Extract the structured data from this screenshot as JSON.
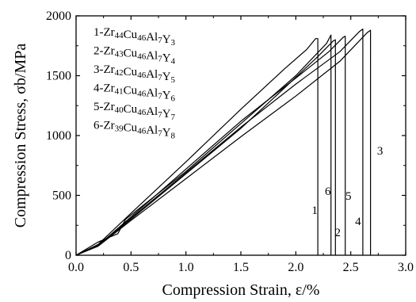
{
  "chart_data": {
    "type": "line",
    "xlabel": "Compression Strain, ε/%",
    "ylabel": "Compression Stress, σb/MPa",
    "xlim": [
      0.0,
      3.0
    ],
    "ylim": [
      0,
      2000
    ],
    "xticks": [
      "0.0",
      "0.5",
      "1.0",
      "1.5",
      "2.0",
      "2.5",
      "3.0"
    ],
    "yticks": [
      "0",
      "500",
      "1000",
      "1500",
      "2000"
    ],
    "xtick_values": [
      0.0,
      0.5,
      1.0,
      1.5,
      2.0,
      2.5,
      3.0
    ],
    "ytick_values": [
      0,
      500,
      1000,
      1500,
      2000
    ],
    "grid": false,
    "legend_position": "top-left",
    "series": [
      {
        "name": "1-Zr44Cu46Al7Y3",
        "curve_label": "1",
        "points": [
          [
            0.0,
            0
          ],
          [
            0.2,
            90
          ],
          [
            0.5,
            350
          ],
          [
            1.0,
            780
          ],
          [
            1.5,
            1220
          ],
          [
            1.9,
            1560
          ],
          [
            2.1,
            1720
          ],
          [
            2.18,
            1810
          ],
          [
            2.2,
            1810
          ],
          [
            2.2,
            0
          ]
        ]
      },
      {
        "name": "2-Zr43Cu46Al7Y4",
        "curve_label": "2",
        "points": [
          [
            0.0,
            0
          ],
          [
            0.2,
            80
          ],
          [
            0.5,
            300
          ],
          [
            1.0,
            680
          ],
          [
            1.5,
            1060
          ],
          [
            1.9,
            1400
          ],
          [
            2.2,
            1660
          ],
          [
            2.34,
            1790
          ],
          [
            2.36,
            1800
          ],
          [
            2.36,
            0
          ]
        ]
      },
      {
        "name": "3-Zr42Cu46Al7Y5",
        "curve_label": "3",
        "points": [
          [
            0.0,
            0
          ],
          [
            0.2,
            75
          ],
          [
            0.5,
            290
          ],
          [
            1.0,
            640
          ],
          [
            1.5,
            990
          ],
          [
            2.0,
            1330
          ],
          [
            2.4,
            1620
          ],
          [
            2.65,
            1860
          ],
          [
            2.68,
            1880
          ],
          [
            2.68,
            0
          ]
        ]
      },
      {
        "name": "4-Zr41Cu46Al7Y6",
        "curve_label": "4",
        "points": [
          [
            0.0,
            0
          ],
          [
            0.2,
            85
          ],
          [
            0.5,
            310
          ],
          [
            1.0,
            690
          ],
          [
            1.5,
            1070
          ],
          [
            2.0,
            1430
          ],
          [
            2.4,
            1700
          ],
          [
            2.58,
            1870
          ],
          [
            2.61,
            1890
          ],
          [
            2.61,
            0
          ]
        ]
      },
      {
        "name": "5-Zr40Cu46Al7Y7",
        "curve_label": "5",
        "points": [
          [
            0.0,
            0
          ],
          [
            0.2,
            80
          ],
          [
            0.5,
            320
          ],
          [
            1.0,
            720
          ],
          [
            1.5,
            1120
          ],
          [
            2.0,
            1480
          ],
          [
            2.3,
            1700
          ],
          [
            2.43,
            1820
          ],
          [
            2.45,
            1830
          ],
          [
            2.45,
            0
          ]
        ]
      },
      {
        "name": "6-Zr39Cu46Al7Y8",
        "curve_label": "6",
        "points": [
          [
            0.0,
            0
          ],
          [
            0.2,
            110
          ],
          [
            0.38,
            180
          ],
          [
            0.45,
            300
          ],
          [
            1.0,
            700
          ],
          [
            1.5,
            1100
          ],
          [
            2.0,
            1500
          ],
          [
            2.28,
            1770
          ],
          [
            2.32,
            1840
          ],
          [
            2.32,
            0
          ]
        ]
      }
    ]
  }
}
